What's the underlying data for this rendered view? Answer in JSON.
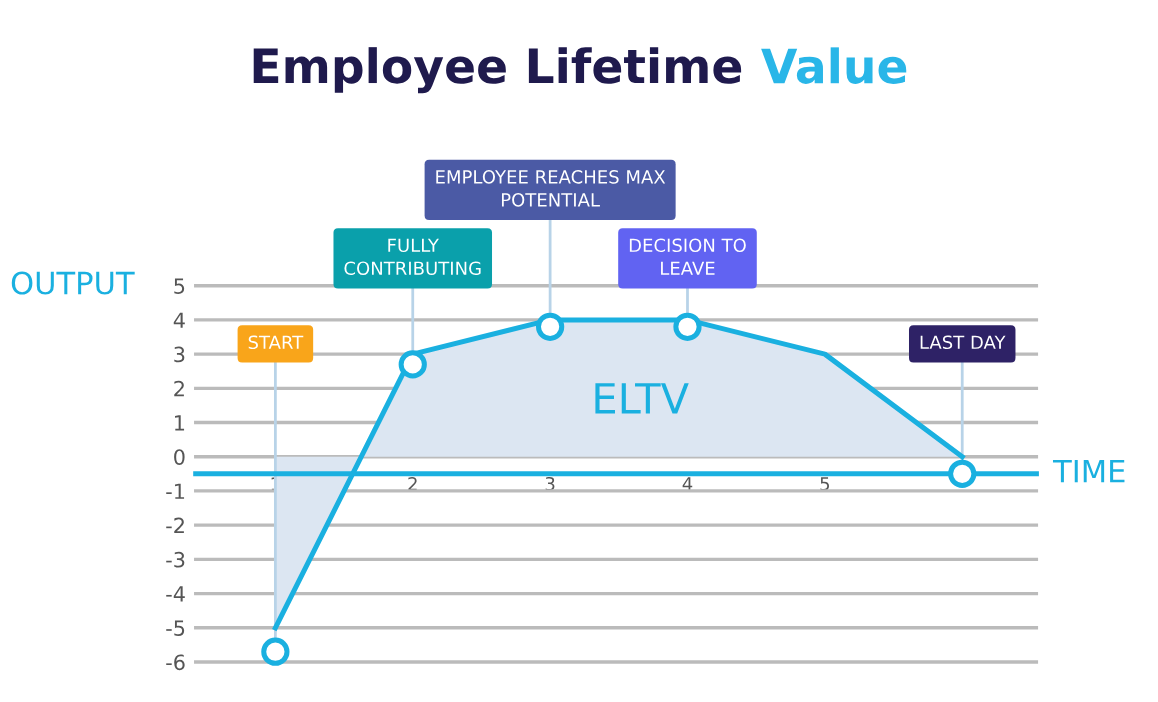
{
  "chart_data": {
    "type": "area",
    "title": "Employee Lifetime Value",
    "xlabel": "TIME",
    "ylabel": "OUTPUT",
    "x": [
      1,
      2,
      3,
      4,
      5,
      6
    ],
    "series": [
      {
        "color": "#1ab0e0",
        "values": [
          -5,
          3,
          4,
          4,
          3,
          0
        ]
      },
      {
        "type": "scatter",
        "color": "#1ab0e0",
        "marker": "circle",
        "x": [
          1,
          2,
          3,
          4,
          6
        ],
        "values": [
          -5.7,
          2.7,
          3.8,
          3.8,
          -0.5
        ]
      }
    ],
    "annotations": [
      {
        "text": "START",
        "x": 1,
        "y": -5.7
      },
      {
        "text": "FULLY\nCONTRIBUTING",
        "x": 2,
        "y": 2.7
      },
      {
        "text": "EMPLOYEE REACHES MAX\nPOTENTIAL",
        "x": 3,
        "y": 3.8
      },
      {
        "text": "DECISION TO\nLEAVE",
        "x": 4,
        "y": 3.8
      },
      {
        "text": "LAST DAY",
        "x": 6,
        "y": -0.5
      },
      "ELTV"
    ],
    "xlim": [
      0.42,
      6.54
    ],
    "xticks": [
      1,
      2,
      3,
      4,
      5
    ],
    "ylim": [
      -6,
      5
    ],
    "yticks": [
      -6,
      -5,
      -4,
      -3,
      -2,
      -1,
      0,
      1,
      2,
      3,
      4,
      5
    ],
    "grid": "y"
  }
}
